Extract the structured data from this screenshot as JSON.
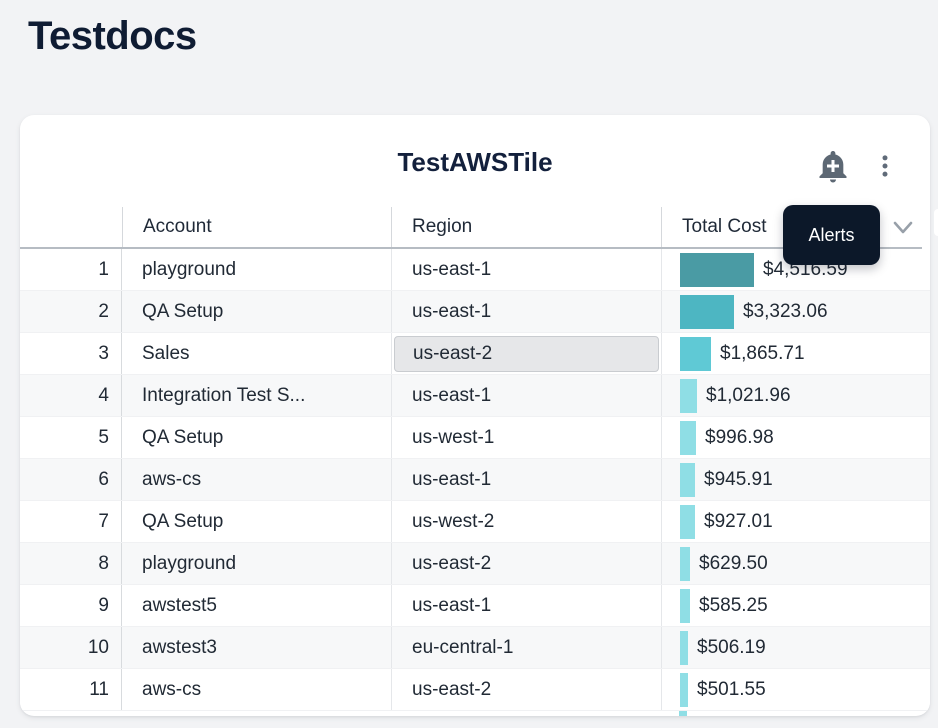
{
  "page": {
    "title": "Testdocs"
  },
  "tile": {
    "title": "TestAWSTile",
    "tooltip": "Alerts",
    "icons": [
      "add-alert-bell",
      "kebab-menu",
      "chevron-down"
    ]
  },
  "table": {
    "columns": [
      "Account",
      "Region",
      "Total Cost"
    ],
    "rows": [
      {
        "num": 1,
        "account": "playground",
        "region": "us-east-1",
        "cost": "$4,516.59",
        "value": 4516.59,
        "bar_color": "#4a9ba4",
        "highlighted": false
      },
      {
        "num": 2,
        "account": "QA Setup",
        "region": "us-east-1",
        "cost": "$3,323.06",
        "value": 3323.06,
        "bar_color": "#4db6c2",
        "highlighted": false
      },
      {
        "num": 3,
        "account": "Sales",
        "region": "us-east-2",
        "cost": "$1,865.71",
        "value": 1865.71,
        "bar_color": "#5fc9d5",
        "highlighted": true
      },
      {
        "num": 4,
        "account": "Integration Test S...",
        "region": "us-east-1",
        "cost": "$1,021.96",
        "value": 1021.96,
        "bar_color": "#8fdee5",
        "highlighted": false
      },
      {
        "num": 5,
        "account": "QA Setup",
        "region": "us-west-1",
        "cost": "$996.98",
        "value": 996.98,
        "bar_color": "#8fdee5",
        "highlighted": false
      },
      {
        "num": 6,
        "account": "aws-cs",
        "region": "us-east-1",
        "cost": "$945.91",
        "value": 945.91,
        "bar_color": "#8fdee5",
        "highlighted": false
      },
      {
        "num": 7,
        "account": "QA Setup",
        "region": "us-west-2",
        "cost": "$927.01",
        "value": 927.01,
        "bar_color": "#8fdee5",
        "highlighted": false
      },
      {
        "num": 8,
        "account": "playground",
        "region": "us-east-2",
        "cost": "$629.50",
        "value": 629.5,
        "bar_color": "#8fdee5",
        "highlighted": false
      },
      {
        "num": 9,
        "account": "awstest5",
        "region": "us-east-1",
        "cost": "$585.25",
        "value": 585.25,
        "bar_color": "#8fdee5",
        "highlighted": false
      },
      {
        "num": 10,
        "account": "awstest3",
        "region": "eu-central-1",
        "cost": "$506.19",
        "value": 506.19,
        "bar_color": "#8fdee5",
        "highlighted": false
      },
      {
        "num": 11,
        "account": "aws-cs",
        "region": "us-east-2",
        "cost": "$501.55",
        "value": 501.55,
        "bar_color": "#8fdee5",
        "highlighted": false
      }
    ],
    "partial_next_row": {
      "bar_color": "#8fdee5"
    }
  },
  "chart_data": {
    "type": "bar",
    "orientation": "horizontal",
    "title": "TestAWSTile",
    "categories": [
      "playground",
      "QA Setup",
      "Sales",
      "Integration Test S...",
      "QA Setup",
      "aws-cs",
      "QA Setup",
      "playground",
      "awstest5",
      "awstest3",
      "aws-cs"
    ],
    "values": [
      4516.59,
      3323.06,
      1865.71,
      1021.96,
      996.98,
      945.91,
      927.01,
      629.5,
      585.25,
      506.19,
      501.55
    ],
    "value_labels": [
      "$4,516.59",
      "$3,323.06",
      "$1,865.71",
      "$1,021.96",
      "$996.98",
      "$945.91",
      "$927.01",
      "$629.50",
      "$585.25",
      "$506.19",
      "$501.55"
    ],
    "xlabel": "Total Cost",
    "ylabel": "Account"
  },
  "colors": {
    "page_bg": "#f2f3f5",
    "card_bg": "#ffffff",
    "title_text": "#0f1c33",
    "tooltip_bg": "#0c1829",
    "tooltip_text": "#ffffff",
    "header_border": "#b6bcc3",
    "row_alt_bg": "#f7f8f9",
    "highlight_cell_bg": "#e6e7e9",
    "highlight_cell_border": "#c9ccd0",
    "icon_color": "#5d6874"
  }
}
